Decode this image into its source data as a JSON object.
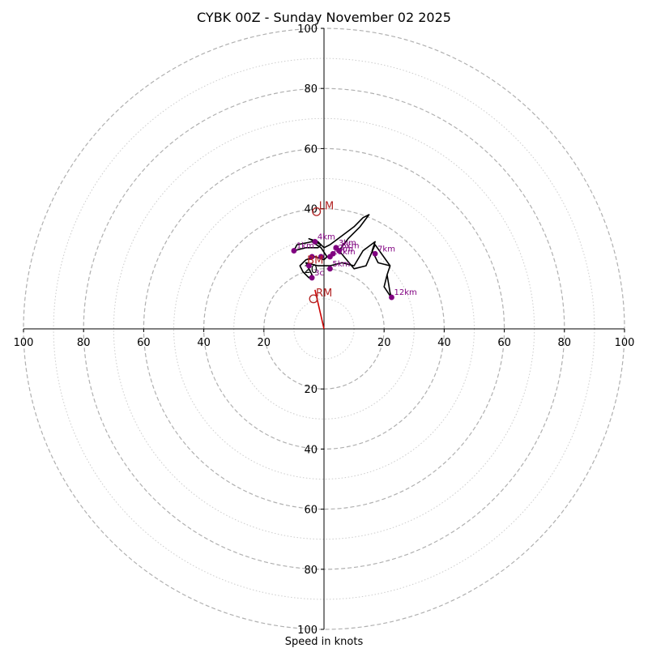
{
  "chart_data": {
    "type": "hodograph",
    "title": "CYBK 00Z - Sunday November 02 2025",
    "xlabel": "Speed in knots",
    "units": "knots",
    "max_speed": 100,
    "rings_dashed": [
      20,
      40,
      60,
      80,
      100
    ],
    "rings_dotted": [
      10,
      30,
      50,
      70,
      90
    ],
    "tick_values": [
      20,
      40,
      60,
      80,
      100
    ],
    "tick_labels": {
      "x_left": [
        "100",
        "80",
        "60",
        "40",
        "20"
      ],
      "x_right": [
        "20",
        "40",
        "60",
        "80",
        "100"
      ],
      "y_top": [
        "100",
        "80",
        "60",
        "40"
      ],
      "y_top_partial": "20",
      "y_bottom": [
        "20",
        "40",
        "60",
        "80",
        "100"
      ]
    },
    "colors": {
      "trace": "#000000",
      "heights": "#800080",
      "motion": "#b22222",
      "shear": "#cc0000",
      "ring": "#b0b0b0",
      "axis": "#000000"
    },
    "trace": [
      [
        2,
        28
      ],
      [
        0,
        27
      ],
      [
        -2,
        29
      ],
      [
        -5,
        30
      ],
      [
        -3,
        29
      ],
      [
        -1,
        28
      ],
      [
        -2,
        27
      ],
      [
        -6,
        27
      ],
      [
        -10,
        26
      ],
      [
        -9,
        28
      ],
      [
        -4,
        29
      ],
      [
        -1,
        27
      ],
      [
        1,
        24
      ],
      [
        0,
        23
      ],
      [
        -3,
        24
      ],
      [
        -6,
        23
      ],
      [
        -8,
        21
      ],
      [
        -7,
        19
      ],
      [
        -5,
        17
      ],
      [
        -4,
        18
      ],
      [
        -5,
        20
      ],
      [
        -6,
        22
      ],
      [
        -2,
        21
      ],
      [
        2,
        21
      ],
      [
        6,
        22
      ],
      [
        10,
        21
      ],
      [
        13,
        26
      ],
      [
        17,
        29
      ],
      [
        16,
        26
      ],
      [
        18,
        22
      ],
      [
        22,
        21
      ],
      [
        21,
        18
      ],
      [
        20,
        14
      ],
      [
        22,
        11
      ],
      [
        22.5,
        10.5
      ],
      [
        22,
        12
      ],
      [
        21,
        18
      ],
      [
        22,
        21
      ],
      [
        17,
        28
      ],
      [
        14,
        21
      ],
      [
        10,
        20
      ],
      [
        5,
        26
      ],
      [
        8,
        30
      ],
      [
        12,
        34
      ],
      [
        15,
        38
      ],
      [
        13,
        37
      ],
      [
        10,
        34
      ],
      [
        6,
        31
      ],
      [
        2,
        28
      ]
    ],
    "height_points": [
      {
        "label": "1km",
        "u": -10,
        "v": 26
      },
      {
        "label": "4km",
        "u": -3,
        "v": 29
      },
      {
        "label": "3km",
        "u": 4,
        "v": 27
      },
      {
        "label": "6km",
        "u": 5,
        "v": 26
      },
      {
        "label": "11km",
        "u": 2,
        "v": 24
      },
      {
        "label": "5km",
        "u": 3,
        "v": 25
      },
      {
        "label": "5km",
        "u": 2,
        "v": 20
      },
      {
        "label": "",
        "u": -1,
        "v": 24
      },
      {
        "label": "",
        "u": -4,
        "v": 24
      },
      {
        "label": "7km",
        "u": 17,
        "v": 25
      },
      {
        "label": "",
        "u": -5,
        "v": 21
      },
      {
        "label": "3c",
        "u": -4,
        "v": 17
      },
      {
        "label": "12km",
        "u": 22.5,
        "v": 10.5
      }
    ],
    "storm_motion": [
      {
        "label": "LM",
        "u": -2.5,
        "v": 39
      },
      {
        "label": "RM",
        "u": -3.5,
        "v": 10
      }
    ],
    "bunkers_mean": {
      "label": "BM",
      "u": -4,
      "v": 23
    },
    "shear_line": [
      [
        0,
        0
      ],
      [
        -3,
        13
      ]
    ]
  }
}
